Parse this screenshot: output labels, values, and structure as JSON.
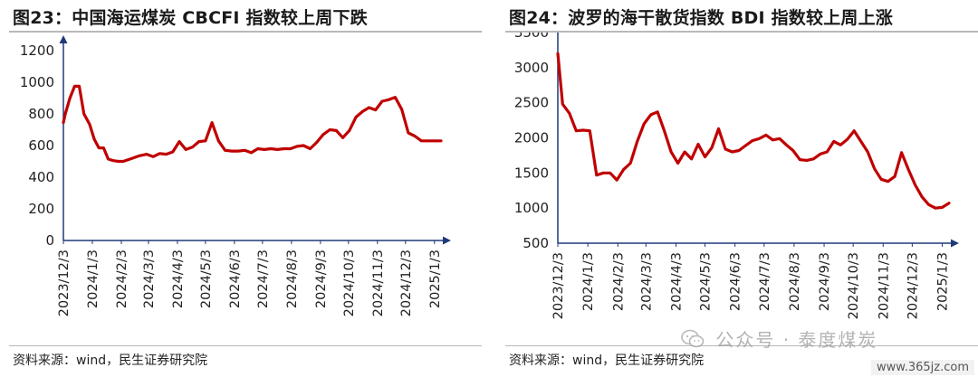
{
  "charts": [
    {
      "title": "图23：中国海运煤炭 CBCFI 指数较上周下跌",
      "source": "资料来源：wind，民生证券研究院",
      "chart_data": {
        "type": "line",
        "color": "#c00000",
        "ylim": [
          0,
          1200
        ],
        "yticks": [
          "0",
          "200",
          "400",
          "600",
          "800",
          "1000",
          "1200"
        ],
        "ytick_values": [
          0,
          200,
          400,
          600,
          800,
          1000,
          1200
        ],
        "xticks": [
          "2023/12/3",
          "2024/1/3",
          "2024/2/3",
          "2024/3/3",
          "2024/4/3",
          "2024/5/3",
          "2024/6/3",
          "2024/7/3",
          "2024/8/3",
          "2024/9/3",
          "2024/10/3",
          "2024/11/3",
          "2024/12/3",
          "2025/1/3"
        ],
        "xlim": [
          "2023-12-03",
          "2025-01-10"
        ],
        "series": [
          {
            "x": [
              "2023-12-01",
              "2023-12-05",
              "2023-12-10",
              "2023-12-15",
              "2023-12-20",
              "2023-12-25",
              "2023-12-31",
              "2024-01-05",
              "2024-01-10",
              "2024-01-15",
              "2024-01-20",
              "2024-01-25",
              "2024-01-31",
              "2024-02-05",
              "2024-02-15",
              "2024-02-22",
              "2024-03-01",
              "2024-03-08",
              "2024-03-15",
              "2024-03-22",
              "2024-03-29",
              "2024-04-05",
              "2024-04-12",
              "2024-04-19",
              "2024-04-26",
              "2024-05-03",
              "2024-05-10",
              "2024-05-17",
              "2024-05-24",
              "2024-05-31",
              "2024-06-07",
              "2024-06-14",
              "2024-06-21",
              "2024-06-28",
              "2024-07-05",
              "2024-07-12",
              "2024-07-19",
              "2024-07-26",
              "2024-08-02",
              "2024-08-09",
              "2024-08-16",
              "2024-08-23",
              "2024-08-30",
              "2024-09-06",
              "2024-09-13",
              "2024-09-20",
              "2024-09-27",
              "2024-10-04",
              "2024-10-11",
              "2024-10-18",
              "2024-10-25",
              "2024-11-01",
              "2024-11-08",
              "2024-11-15",
              "2024-11-22",
              "2024-11-29",
              "2024-12-06",
              "2024-12-13",
              "2024-12-20",
              "2024-12-27",
              "2025-01-03",
              "2025-01-10"
            ],
            "y": [
              745,
              800,
              900,
              975,
              975,
              800,
              735,
              640,
              585,
              585,
              515,
              505,
              500,
              500,
              520,
              535,
              545,
              530,
              550,
              545,
              560,
              625,
              575,
              590,
              625,
              630,
              745,
              630,
              570,
              565,
              565,
              570,
              555,
              580,
              575,
              580,
              575,
              580,
              580,
              595,
              600,
              580,
              620,
              670,
              700,
              695,
              650,
              695,
              780,
              815,
              840,
              825,
              880,
              890,
              905,
              830,
              680,
              660,
              630,
              630,
              630,
              630
            ]
          }
        ]
      }
    },
    {
      "title": "图24：波罗的海干散货指数 BDI 指数较上周上涨",
      "source": "资料来源：wind，民生证券研究院",
      "chart_data": {
        "type": "line",
        "color": "#c00000",
        "ylim": [
          500,
          3500
        ],
        "yticks": [
          "500",
          "1000",
          "1500",
          "2000",
          "2500",
          "3000",
          "3500"
        ],
        "ytick_values": [
          500,
          1000,
          1500,
          2000,
          2500,
          3000,
          3500
        ],
        "xticks": [
          "2023/12/3",
          "2024/1/3",
          "2024/2/3",
          "2024/3/3",
          "2024/4/3",
          "2024/5/3",
          "2024/6/3",
          "2024/7/3",
          "2024/8/3",
          "2024/9/3",
          "2024/10/3",
          "2024/11/3",
          "2024/12/3",
          "2025/1/3"
        ],
        "xlim": [
          "2023-12-03",
          "2025-01-10"
        ],
        "series": [
          {
            "x": [
              "2023-12-03",
              "2023-12-08",
              "2023-12-15",
              "2023-12-22",
              "2023-12-29",
              "2024-01-05",
              "2024-01-12",
              "2024-01-19",
              "2024-01-26",
              "2024-02-02",
              "2024-02-09",
              "2024-02-16",
              "2024-02-23",
              "2024-03-01",
              "2024-03-08",
              "2024-03-15",
              "2024-03-22",
              "2024-03-29",
              "2024-04-05",
              "2024-04-12",
              "2024-04-19",
              "2024-04-26",
              "2024-05-03",
              "2024-05-10",
              "2024-05-17",
              "2024-05-24",
              "2024-05-31",
              "2024-06-07",
              "2024-06-14",
              "2024-06-21",
              "2024-06-28",
              "2024-07-05",
              "2024-07-12",
              "2024-07-19",
              "2024-07-26",
              "2024-08-02",
              "2024-08-09",
              "2024-08-16",
              "2024-08-23",
              "2024-08-30",
              "2024-09-06",
              "2024-09-13",
              "2024-09-20",
              "2024-09-27",
              "2024-10-04",
              "2024-10-11",
              "2024-10-18",
              "2024-10-25",
              "2024-11-01",
              "2024-11-08",
              "2024-11-15",
              "2024-11-22",
              "2024-11-29",
              "2024-12-06",
              "2024-12-13",
              "2024-12-20",
              "2024-12-27",
              "2025-01-03",
              "2025-01-10"
            ],
            "y": [
              3200,
              2480,
              2350,
              2100,
              2110,
              2100,
              1470,
              1500,
              1500,
              1400,
              1550,
              1640,
              1950,
              2200,
              2330,
              2370,
              2100,
              1800,
              1640,
              1800,
              1700,
              1910,
              1730,
              1860,
              2130,
              1840,
              1800,
              1820,
              1890,
              1960,
              1990,
              2040,
              1970,
              1990,
              1900,
              1820,
              1690,
              1680,
              1700,
              1770,
              1800,
              1950,
              1900,
              1980,
              2100,
              1950,
              1800,
              1560,
              1410,
              1380,
              1450,
              1790,
              1550,
              1330,
              1160,
              1050,
              1000,
              1010,
              1070
            ]
          }
        ]
      }
    }
  ],
  "watermark": {
    "text": "公众号 · 泰度煤炭",
    "site": "www.365jz.com"
  }
}
